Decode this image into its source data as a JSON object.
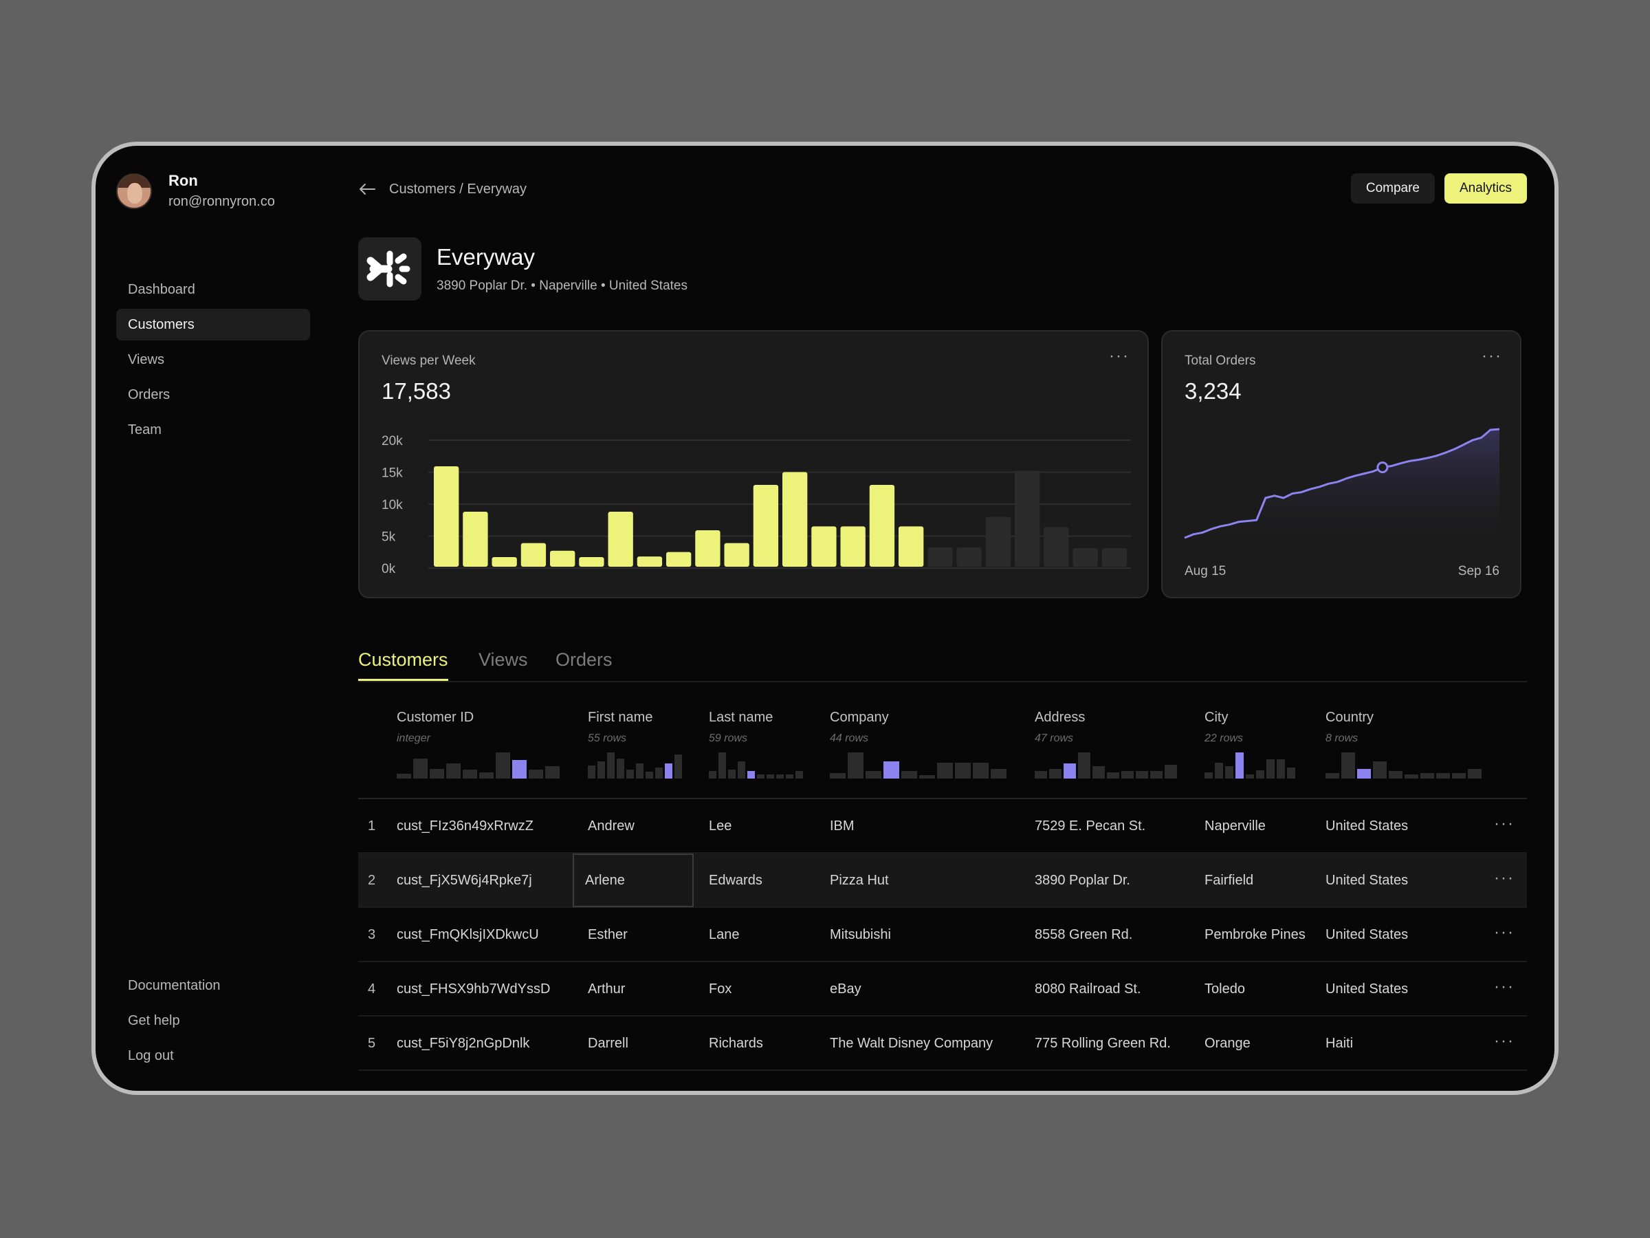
{
  "user": {
    "name": "Ron",
    "email": "ron@ronnyron.co"
  },
  "nav": {
    "items": [
      "Dashboard",
      "Customers",
      "Views",
      "Orders",
      "Team"
    ],
    "bottom": [
      "Documentation",
      "Get help",
      "Log out"
    ]
  },
  "header": {
    "breadcrumb": "Customers / Everyway",
    "compare": "Compare",
    "analytics": "Analytics"
  },
  "company": {
    "name": "Everyway",
    "address": "3890 Poplar Dr. • Naperville • United States"
  },
  "views_card": {
    "title": "Views per Week",
    "value": "17,583",
    "more": "···",
    "y_ticks": [
      "20k",
      "15k",
      "10k",
      "5k",
      "0k"
    ]
  },
  "orders_card": {
    "title": "Total Orders",
    "value": "3,234",
    "more": "···",
    "start_label": "Aug 15",
    "end_label": "Sep 16"
  },
  "chart_data": [
    {
      "type": "bar",
      "title": "Views per Week",
      "ylim": [
        0,
        20000
      ],
      "y_ticks": [
        "20k",
        "15k",
        "10k",
        "5k",
        "0k"
      ],
      "values": [
        15700,
        8600,
        1500,
        3700,
        2500,
        1500,
        8600,
        1600,
        2300,
        5700,
        3700,
        12800,
        14800,
        6300,
        6300,
        12800,
        6300,
        3000,
        3000,
        7800,
        15000,
        6200,
        2900,
        2900
      ],
      "highlighted_count": 17,
      "colors": {
        "active": "#ecf27a",
        "inactive": "#2b2b2b",
        "grid": "#2e2e2e"
      }
    },
    {
      "type": "area",
      "title": "Total Orders",
      "x_start": "Aug 15",
      "x_end": "Sep 16",
      "values": [
        800,
        880,
        920,
        1000,
        1060,
        1100,
        1160,
        1180,
        1200,
        1700,
        1750,
        1700,
        1800,
        1830,
        1900,
        1950,
        2020,
        2060,
        2140,
        2200,
        2250,
        2300,
        2390,
        2420,
        2480,
        2530,
        2560,
        2600,
        2650,
        2720,
        2800,
        2900,
        3000,
        3060,
        3234,
        3250
      ],
      "marker_index": 22,
      "colors": {
        "line": "#8c83ef"
      }
    }
  ],
  "tabs": [
    "Customers",
    "Views",
    "Orders"
  ],
  "table": {
    "columns": [
      {
        "label": "Customer ID",
        "sub": "integer",
        "hist": [
          4,
          16,
          8,
          12,
          7,
          5,
          21,
          15,
          7,
          10
        ],
        "hl": 7
      },
      {
        "label": "First name",
        "sub": "55 rows",
        "hist": [
          6,
          8,
          12,
          9,
          4,
          7,
          3,
          5,
          7,
          11
        ],
        "hl": 8
      },
      {
        "label": "Last name",
        "sub": "59 rows",
        "hist": [
          9,
          30,
          10,
          20,
          9,
          5,
          5,
          5,
          5,
          9
        ],
        "hl": 4
      },
      {
        "label": "Company",
        "sub": "44 rows",
        "hist": [
          6,
          30,
          9,
          20,
          9,
          4,
          18,
          18,
          18,
          11
        ],
        "hl": 3
      },
      {
        "label": "Address",
        "sub": "47 rows",
        "hist": [
          6,
          8,
          12,
          21,
          10,
          5,
          6,
          6,
          6,
          11
        ],
        "hl": 2
      },
      {
        "label": "City",
        "sub": "22 rows",
        "hist": [
          6,
          16,
          12,
          26,
          4,
          8,
          19,
          19,
          11
        ],
        "hl": 3
      },
      {
        "label": "Country",
        "sub": "8 rows",
        "hist": [
          6,
          30,
          11,
          20,
          9,
          5,
          6,
          6,
          6,
          11
        ],
        "hl": 2
      }
    ],
    "rows": [
      [
        "1",
        "cust_FIz36n49xRrwzZ",
        "Andrew",
        "Lee",
        "IBM",
        "7529 E. Pecan St.",
        "Naperville",
        "United States"
      ],
      [
        "2",
        "cust_FjX5W6j4Rpke7j",
        "Arlene",
        "Edwards",
        "Pizza Hut",
        "3890 Poplar Dr.",
        "Fairfield",
        "United States"
      ],
      [
        "3",
        "cust_FmQKlsjIXDkwcU",
        "Esther",
        "Lane",
        "Mitsubishi",
        "8558 Green Rd.",
        "Pembroke Pines",
        "United States"
      ],
      [
        "4",
        "cust_FHSX9hb7WdYssD",
        "Arthur",
        "Fox",
        "eBay",
        "8080 Railroad St.",
        "Toledo",
        "United States"
      ],
      [
        "5",
        "cust_F5iY8j2nGpDnlk",
        "Darrell",
        "Richards",
        "The Walt Disney Company",
        "775 Rolling Green Rd.",
        "Orange",
        "Haiti"
      ]
    ],
    "row_more": "···"
  }
}
